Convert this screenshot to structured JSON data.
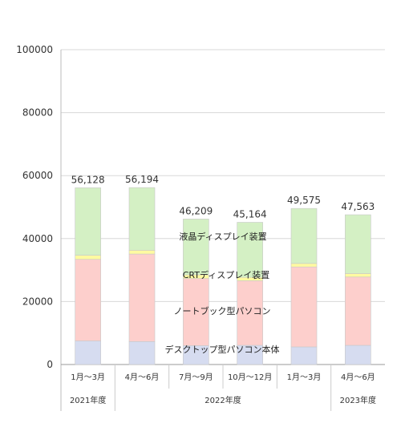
{
  "chart_data": {
    "type": "bar",
    "stacked": true,
    "ylim": [
      0,
      100000
    ],
    "yticks": [
      "0",
      "20000",
      "40000",
      "60000",
      "80000",
      "100000"
    ],
    "categories": [
      "1月～3月",
      "4月～6月",
      "7月～9月",
      "10月～12月",
      "1月～3月",
      "4月～6月"
    ],
    "periods": [
      {
        "label": "2021年度",
        "span": [
          0,
          1
        ]
      },
      {
        "label": "2022年度",
        "span": [
          1,
          5
        ]
      },
      {
        "label": "2023年度",
        "span": [
          5,
          6
        ]
      }
    ],
    "totals": [
      "56,128",
      "56,194",
      "46,209",
      "45,164",
      "49,575",
      "47,563"
    ],
    "highlight_index": 5,
    "highlight_color": "#e8393b",
    "series": [
      {
        "name": "デスクトップ型パソコン本体",
        "color": "#d6dcf0",
        "values": [
          7500,
          7300,
          6000,
          6100,
          5600,
          6100
        ]
      },
      {
        "name": "ノートブック型パソコン",
        "color": "#fdcfcc",
        "values": [
          25900,
          27800,
          21300,
          20500,
          25400,
          21700
        ]
      },
      {
        "name": "CRTディスプレイ装置",
        "color": "#fffaa0",
        "values": [
          1300,
          1200,
          1200,
          1100,
          1100,
          1100
        ]
      },
      {
        "name": "液晶ディスプレイ装置",
        "color": "#d4f0c4",
        "values": [
          21428,
          19894,
          17709,
          17464,
          17475,
          18663
        ]
      }
    ],
    "series_label_positions_note": "",
    "grid": true,
    "legend": "inline"
  }
}
